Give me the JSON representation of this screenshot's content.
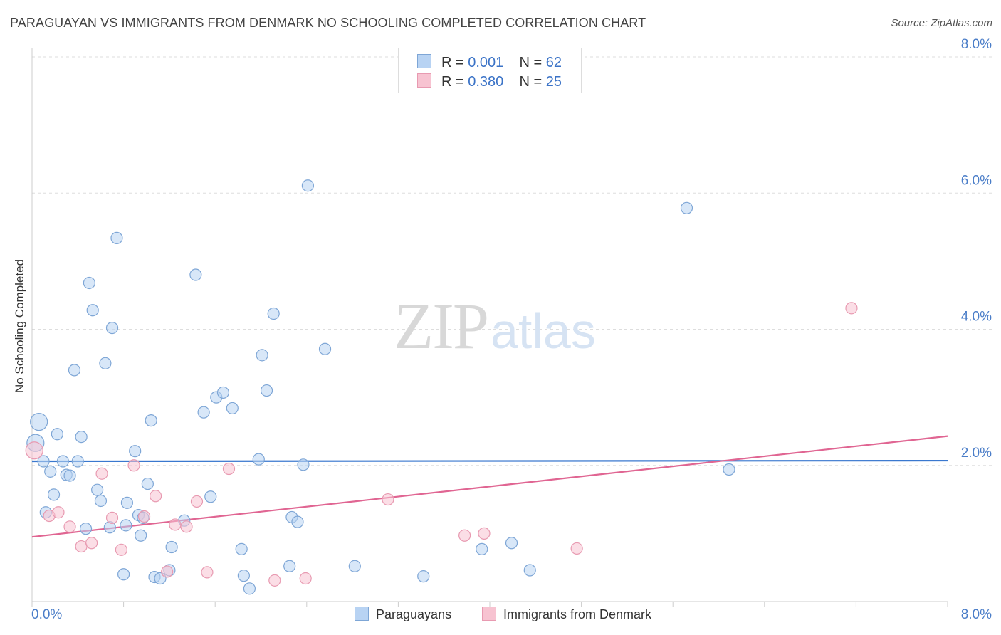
{
  "header": {
    "title": "PARAGUAYAN VS IMMIGRANTS FROM DENMARK NO SCHOOLING COMPLETED CORRELATION CHART",
    "source": "Source: ZipAtlas.com"
  },
  "legend": {
    "items": [
      {
        "r_label": "R =",
        "r_value": "0.001",
        "n_label": "N =",
        "n_value": "62"
      },
      {
        "r_label": "R =",
        "r_value": "0.380",
        "n_label": "N =",
        "n_value": "25"
      }
    ]
  },
  "bottom_legend": {
    "series1": "Paraguayans",
    "series2": "Immigrants from Denmark"
  },
  "watermark": {
    "part1": "ZIP",
    "part2": "atlas"
  },
  "colors": {
    "blue_fill": "#b8d3f3",
    "blue_stroke": "#7ea6d6",
    "blue_line": "#3a78cf",
    "pink_fill": "#f7c3d1",
    "pink_stroke": "#e89ab1",
    "pink_line": "#e06592",
    "tick_text": "#4a7dc8",
    "grid": "#dddddd"
  },
  "chart_data": {
    "type": "scatter",
    "title": "PARAGUAYAN VS IMMIGRANTS FROM DENMARK NO SCHOOLING COMPLETED CORRELATION CHART",
    "xlabel": "",
    "ylabel": "No Schooling Completed",
    "xlim": [
      0,
      8
    ],
    "ylim": [
      0,
      8
    ],
    "x_tick_labels": [
      "0.0%",
      "8.0%"
    ],
    "y_ticks": [
      2,
      4,
      6,
      8
    ],
    "y_tick_labels": [
      "2.0%",
      "4.0%",
      "6.0%",
      "8.0%"
    ],
    "grid": true,
    "legend_position": "top-center",
    "series": [
      {
        "name": "Paraguayans",
        "r": 0.001,
        "n": 62,
        "trend": {
          "x": [
            0,
            8
          ],
          "y": [
            2.06,
            2.07
          ]
        },
        "points": [
          [
            0.03,
            2.33
          ],
          [
            0.06,
            2.64
          ],
          [
            0.1,
            2.06
          ],
          [
            0.12,
            1.31
          ],
          [
            0.16,
            1.91
          ],
          [
            0.19,
            1.57
          ],
          [
            0.22,
            2.46
          ],
          [
            0.27,
            2.06
          ],
          [
            0.3,
            1.86
          ],
          [
            0.33,
            1.85
          ],
          [
            0.37,
            3.4
          ],
          [
            0.4,
            2.06
          ],
          [
            0.43,
            2.42
          ],
          [
            0.47,
            1.07
          ],
          [
            0.5,
            4.68
          ],
          [
            0.53,
            4.28
          ],
          [
            0.57,
            1.64
          ],
          [
            0.6,
            1.48
          ],
          [
            0.64,
            3.5
          ],
          [
            0.68,
            1.09
          ],
          [
            0.7,
            4.02
          ],
          [
            0.74,
            5.34
          ],
          [
            0.8,
            0.4
          ],
          [
            0.82,
            1.12
          ],
          [
            0.83,
            1.45
          ],
          [
            0.9,
            2.21
          ],
          [
            0.93,
            1.27
          ],
          [
            0.95,
            0.97
          ],
          [
            0.97,
            1.23
          ],
          [
            1.01,
            1.73
          ],
          [
            1.04,
            2.66
          ],
          [
            1.07,
            0.36
          ],
          [
            1.12,
            0.34
          ],
          [
            1.2,
            0.46
          ],
          [
            1.22,
            0.8
          ],
          [
            1.33,
            1.19
          ],
          [
            1.43,
            4.8
          ],
          [
            1.5,
            2.78
          ],
          [
            1.56,
            1.54
          ],
          [
            1.61,
            3.0
          ],
          [
            1.67,
            3.07
          ],
          [
            1.75,
            2.84
          ],
          [
            1.83,
            0.77
          ],
          [
            1.85,
            0.38
          ],
          [
            1.9,
            0.19
          ],
          [
            1.98,
            2.09
          ],
          [
            2.01,
            3.62
          ],
          [
            2.05,
            3.1
          ],
          [
            2.11,
            4.23
          ],
          [
            2.25,
            0.52
          ],
          [
            2.27,
            1.24
          ],
          [
            2.32,
            1.17
          ],
          [
            2.37,
            2.01
          ],
          [
            2.41,
            6.11
          ],
          [
            2.56,
            3.71
          ],
          [
            2.82,
            0.52
          ],
          [
            3.42,
            0.37
          ],
          [
            3.93,
            0.77
          ],
          [
            4.19,
            0.86
          ],
          [
            4.35,
            0.46
          ],
          [
            5.72,
            5.78
          ],
          [
            6.09,
            1.94
          ]
        ]
      },
      {
        "name": "Immigrants from Denmark",
        "r": 0.38,
        "n": 25,
        "trend": {
          "x": [
            0,
            8
          ],
          "y": [
            0.95,
            2.43
          ]
        },
        "points": [
          [
            0.02,
            2.22
          ],
          [
            0.15,
            1.26
          ],
          [
            0.23,
            1.31
          ],
          [
            0.33,
            1.1
          ],
          [
            0.43,
            0.81
          ],
          [
            0.52,
            0.86
          ],
          [
            0.61,
            1.88
          ],
          [
            0.7,
            1.23
          ],
          [
            0.78,
            0.76
          ],
          [
            0.89,
            2.0
          ],
          [
            0.98,
            1.25
          ],
          [
            1.08,
            1.55
          ],
          [
            1.18,
            0.44
          ],
          [
            1.25,
            1.13
          ],
          [
            1.35,
            1.1
          ],
          [
            1.44,
            1.47
          ],
          [
            1.53,
            0.43
          ],
          [
            1.72,
            1.95
          ],
          [
            2.12,
            0.31
          ],
          [
            2.39,
            0.34
          ],
          [
            3.11,
            1.5
          ],
          [
            3.78,
            0.97
          ],
          [
            3.95,
            1.0
          ],
          [
            4.76,
            0.78
          ],
          [
            7.16,
            4.31
          ]
        ]
      }
    ]
  }
}
